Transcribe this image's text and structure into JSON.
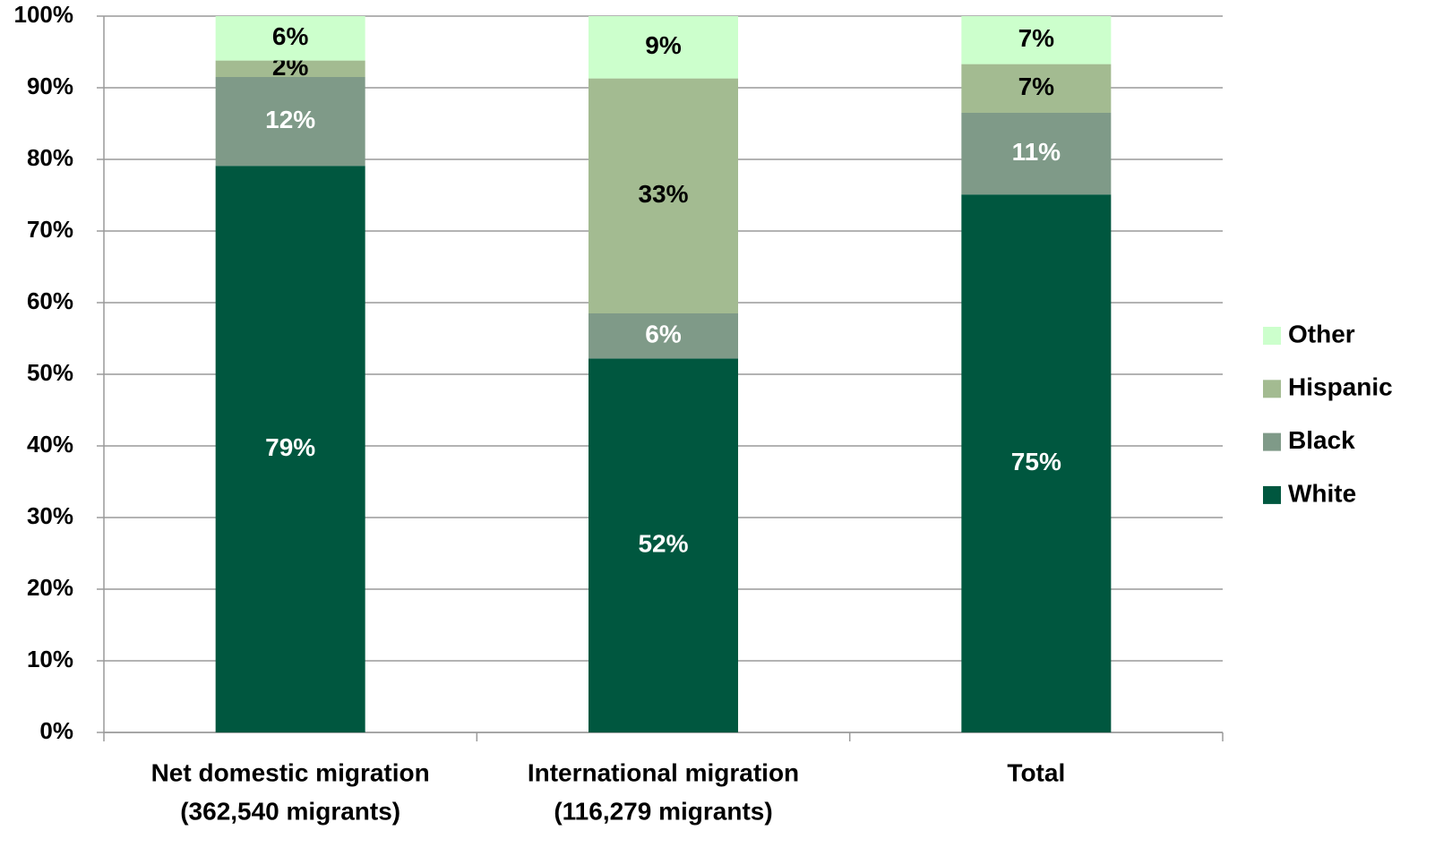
{
  "chart_data": {
    "type": "stacked_bar",
    "categories": [
      [
        "Net domestic migration",
        "(362,540 migrants)"
      ],
      [
        "International migration",
        "(116,279 migrants)"
      ],
      [
        "Total"
      ]
    ],
    "series": [
      {
        "name": "White",
        "color": "#00573f",
        "label_color": "#ffffff",
        "values": [
          79.1,
          52.2,
          75.1
        ],
        "value_labels": [
          "79%",
          "52%",
          "75%"
        ]
      },
      {
        "name": "Black",
        "color": "#7f9a88",
        "label_color": "#ffffff",
        "values": [
          12.4,
          6.3,
          11.4
        ],
        "value_labels": [
          "12%",
          "6%",
          "11%"
        ]
      },
      {
        "name": "Hispanic",
        "color": "#a3bb91",
        "label_color": "#000000",
        "values": [
          2.3,
          32.8,
          6.8
        ],
        "value_labels": [
          "2%",
          "33%",
          "7%"
        ]
      },
      {
        "name": "Other",
        "color": "#ccffcc",
        "label_color": "#000000",
        "values": [
          6.2,
          8.7,
          6.7
        ],
        "value_labels": [
          "6%",
          "9%",
          "7%"
        ]
      }
    ],
    "ylim": [
      0,
      100
    ],
    "yticks": [
      {
        "value": 0,
        "label": "0%"
      },
      {
        "value": 10,
        "label": "10%"
      },
      {
        "value": 20,
        "label": "20%"
      },
      {
        "value": 30,
        "label": "30%"
      },
      {
        "value": 40,
        "label": "40%"
      },
      {
        "value": 50,
        "label": "50%"
      },
      {
        "value": 60,
        "label": "60%"
      },
      {
        "value": 70,
        "label": "70%"
      },
      {
        "value": 80,
        "label": "80%"
      },
      {
        "value": 90,
        "label": "90%"
      },
      {
        "value": 100,
        "label": "100%"
      }
    ],
    "grid": true,
    "legend": "right"
  }
}
